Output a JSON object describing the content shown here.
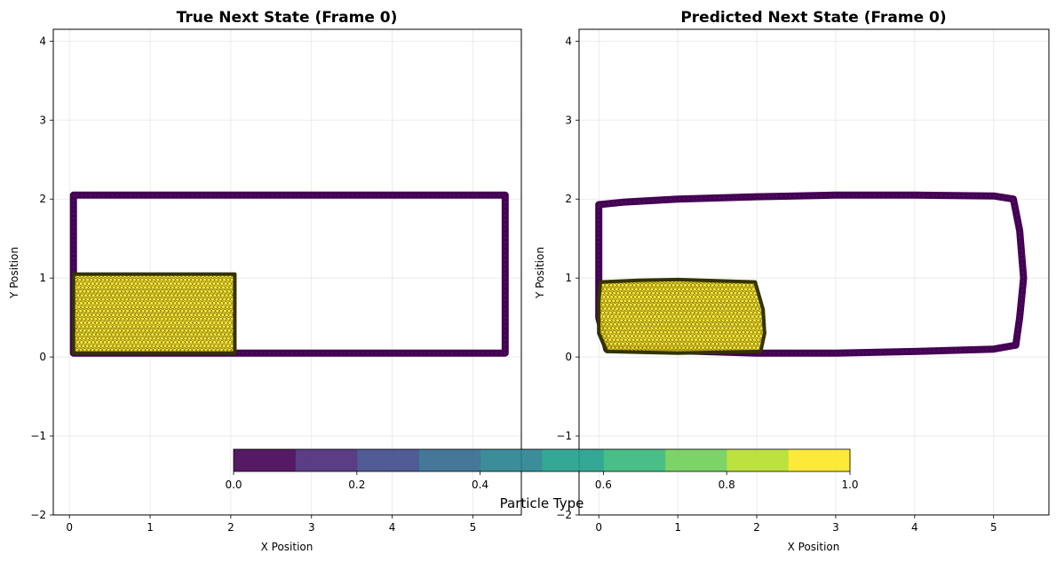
{
  "colors": {
    "type0": "#440154",
    "type1": "#fde725",
    "edge": "#111111",
    "grid": "#e6e6e6",
    "colormap": [
      "#440154",
      "#482878",
      "#3e4989",
      "#31688e",
      "#26828e",
      "#1f9e89",
      "#35b779",
      "#6ece58",
      "#b5de2b",
      "#fde725"
    ]
  },
  "chart_data": [
    {
      "type": "scatter",
      "title": "True Next State (Frame 0)",
      "xlabel": "X Position",
      "ylabel": "Y Position",
      "xlim": [
        -0.2,
        5.6
      ],
      "ylim": [
        -2.0,
        4.15
      ],
      "xticks": [
        0,
        1,
        2,
        3,
        4,
        5
      ],
      "yticks": [
        -2,
        -1,
        0,
        1,
        2,
        3,
        4
      ],
      "grid": true,
      "series": [
        {
          "particle_type": 0,
          "shape": "rectangle-outline",
          "x_range": [
            0.05,
            5.4
          ],
          "y_range": [
            0.05,
            2.05
          ]
        },
        {
          "particle_type": 1,
          "shape": "filled-rectangle",
          "x_range": [
            0.05,
            2.05
          ],
          "y_range": [
            0.05,
            1.05
          ]
        }
      ]
    },
    {
      "type": "scatter",
      "title": "Predicted Next State (Frame 0)",
      "xlabel": "X Position",
      "ylabel": "Y Position",
      "xlim": [
        -0.25,
        5.7
      ],
      "ylim": [
        -2.0,
        4.15
      ],
      "xticks": [
        0,
        1,
        2,
        3,
        4,
        5
      ],
      "yticks": [
        -2,
        -1,
        0,
        1,
        2,
        3,
        4
      ],
      "grid": true,
      "series": [
        {
          "particle_type": 0,
          "shape": "rectangle-outline",
          "outline": [
            [
              0.0,
              1.93
            ],
            [
              0.3,
              1.96
            ],
            [
              1.0,
              2.0
            ],
            [
              2.0,
              2.03
            ],
            [
              3.0,
              2.05
            ],
            [
              4.0,
              2.05
            ],
            [
              5.0,
              2.04
            ],
            [
              5.25,
              2.0
            ],
            [
              5.33,
              1.6
            ],
            [
              5.38,
              1.0
            ],
            [
              5.33,
              0.5
            ],
            [
              5.28,
              0.15
            ],
            [
              5.0,
              0.1
            ],
            [
              4.0,
              0.07
            ],
            [
              3.0,
              0.05
            ],
            [
              2.0,
              0.05
            ],
            [
              1.0,
              0.08
            ],
            [
              0.1,
              0.1
            ],
            [
              0.0,
              0.5
            ],
            [
              0.0,
              1.0
            ],
            [
              0.0,
              1.5
            ],
            [
              0.0,
              1.93
            ]
          ]
        },
        {
          "particle_type": 1,
          "shape": "filled-rectangle",
          "outline": [
            [
              0.02,
              0.95
            ],
            [
              0.5,
              0.97
            ],
            [
              1.0,
              0.98
            ],
            [
              1.98,
              0.95
            ],
            [
              2.08,
              0.6
            ],
            [
              2.1,
              0.3
            ],
            [
              2.05,
              0.07
            ],
            [
              1.0,
              0.05
            ],
            [
              0.1,
              0.07
            ],
            [
              0.0,
              0.3
            ],
            [
              0.0,
              0.7
            ],
            [
              0.02,
              0.95
            ]
          ]
        }
      ]
    }
  ],
  "colorbar": {
    "label": "Particle Type",
    "ticks": [
      "0.0",
      "0.2",
      "0.4",
      "0.6",
      "0.8",
      "1.0"
    ],
    "range": [
      0,
      1
    ]
  }
}
